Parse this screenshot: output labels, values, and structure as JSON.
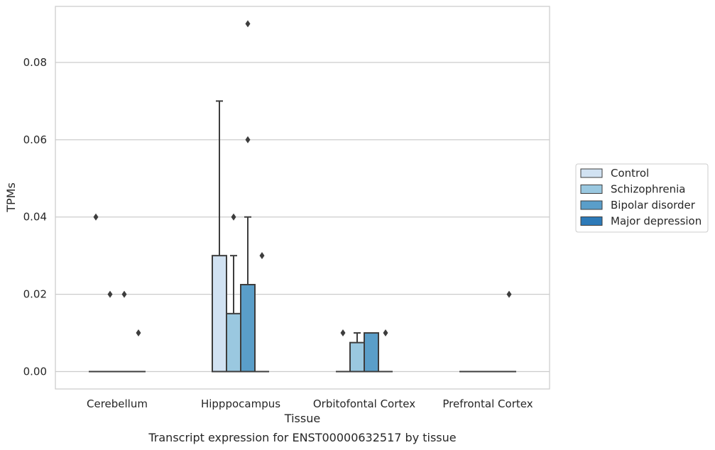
{
  "chart_data": {
    "type": "box",
    "title": "",
    "xlabel": "Tissue",
    "ylabel": "TPMs",
    "caption": "Transcript expression for ENST00000632517 by tissue",
    "categories": [
      "Cerebellum",
      "Hipppocampus",
      "Orbitofontal Cortex",
      "Prefrontal Cortex"
    ],
    "ylim": [
      -0.0045,
      0.0945
    ],
    "yticks": [
      0.0,
      0.02,
      0.04,
      0.06,
      0.08
    ],
    "ytick_labels": [
      "0.00",
      "0.02",
      "0.04",
      "0.06",
      "0.08"
    ],
    "grid": "horizontal",
    "legend_position": "right",
    "series": [
      {
        "name": "Control",
        "color": "#d1e2f2",
        "boxes": [
          {
            "q1": 0,
            "median": 0,
            "q3": 0,
            "whisker_low": 0,
            "whisker_high": 0,
            "outliers": [
              0.04
            ]
          },
          {
            "q1": 0,
            "median": 0,
            "q3": 0.03,
            "whisker_low": 0,
            "whisker_high": 0.07,
            "outliers": []
          },
          {
            "q1": 0,
            "median": 0,
            "q3": 0,
            "whisker_low": 0,
            "whisker_high": 0,
            "outliers": [
              0.01
            ]
          },
          {
            "q1": 0,
            "median": 0,
            "q3": 0,
            "whisker_low": 0,
            "whisker_high": 0,
            "outliers": []
          }
        ]
      },
      {
        "name": "Schizophrenia",
        "color": "#9ac8e0",
        "boxes": [
          {
            "q1": 0,
            "median": 0,
            "q3": 0,
            "whisker_low": 0,
            "whisker_high": 0,
            "outliers": [
              0.02
            ]
          },
          {
            "q1": 0,
            "median": 0,
            "q3": 0.015,
            "whisker_low": 0,
            "whisker_high": 0.03,
            "outliers": [
              0.04
            ]
          },
          {
            "q1": 0,
            "median": 0,
            "q3": 0.0075,
            "whisker_low": 0,
            "whisker_high": 0.01,
            "outliers": []
          },
          {
            "q1": 0,
            "median": 0,
            "q3": 0,
            "whisker_low": 0,
            "whisker_high": 0,
            "outliers": []
          }
        ]
      },
      {
        "name": "Bipolar disorder",
        "color": "#5a9ec9",
        "boxes": [
          {
            "q1": 0,
            "median": 0,
            "q3": 0,
            "whisker_low": 0,
            "whisker_high": 0,
            "outliers": [
              0.02
            ]
          },
          {
            "q1": 0,
            "median": 0,
            "q3": 0.0225,
            "whisker_low": 0,
            "whisker_high": 0.04,
            "outliers": [
              0.09,
              0.06
            ]
          },
          {
            "q1": 0,
            "median": 0,
            "q3": 0.01,
            "whisker_low": 0,
            "whisker_high": 0.01,
            "outliers": []
          },
          {
            "q1": 0,
            "median": 0,
            "q3": 0,
            "whisker_low": 0,
            "whisker_high": 0,
            "outliers": []
          }
        ]
      },
      {
        "name": "Major depression",
        "color": "#2d7ab8",
        "boxes": [
          {
            "q1": 0,
            "median": 0,
            "q3": 0,
            "whisker_low": 0,
            "whisker_high": 0,
            "outliers": [
              0.01
            ]
          },
          {
            "q1": 0,
            "median": 0,
            "q3": 0,
            "whisker_low": 0,
            "whisker_high": 0,
            "outliers": [
              0.03
            ]
          },
          {
            "q1": 0,
            "median": 0,
            "q3": 0,
            "whisker_low": 0,
            "whisker_high": 0,
            "outliers": [
              0.01
            ]
          },
          {
            "q1": 0,
            "median": 0,
            "q3": 0,
            "whisker_low": 0,
            "whisker_high": 0,
            "outliers": [
              0.02
            ]
          }
        ]
      }
    ]
  }
}
